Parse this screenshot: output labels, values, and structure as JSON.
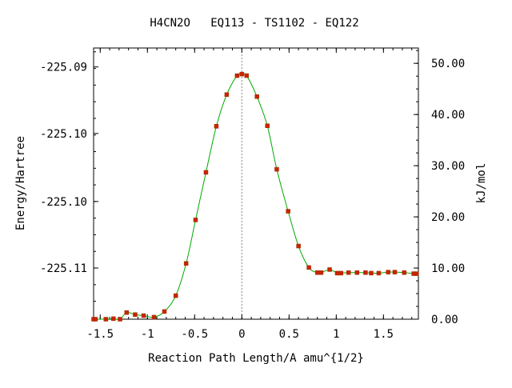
{
  "chart_data": {
    "type": "line",
    "title": "H4CN2O   EQ113 - TS1102 - EQ122",
    "xlabel": "Reaction Path Length/A amu^{1/2}",
    "ylabel_left": "Energy/Hartree",
    "ylabel_right": "kJ/mol",
    "xlim": [
      -1.57,
      1.87
    ],
    "ylim_right": [
      0,
      53
    ],
    "x_ticks": [
      -1.5,
      -1,
      -0.5,
      0,
      0.5,
      1,
      1.5
    ],
    "x_tick_labels": [
      "-1.5",
      "-1",
      "-0.5",
      "0",
      "0.5",
      "1",
      "1.5"
    ],
    "left_ticks": [
      {
        "label": "-225.09",
        "kj": 49.3
      },
      {
        "label": "-225.10",
        "kj": 36.3
      },
      {
        "label": "-225.10",
        "kj": 23.0
      },
      {
        "label": "-225.11",
        "kj": 10.0
      }
    ],
    "right_ticks": [
      0,
      10,
      20,
      30,
      40,
      50
    ],
    "right_tick_labels": [
      "0.00",
      "10.00",
      "20.00",
      "30.00",
      "40.00",
      "50.00"
    ],
    "ts_x": 0.0,
    "series": [
      {
        "x": [
          -1.57,
          -1.55,
          -1.44,
          -1.36,
          -1.29,
          -1.22,
          -1.13,
          -1.04,
          -0.93,
          -0.82,
          -0.7,
          -0.59,
          -0.49,
          -0.38,
          -0.27,
          -0.16,
          -0.05,
          0.0,
          0.05,
          0.16,
          0.27,
          0.37,
          0.49,
          0.6,
          0.71,
          0.8,
          0.84,
          0.93,
          1.01,
          1.05,
          1.13,
          1.22,
          1.31,
          1.37,
          1.45,
          1.55,
          1.62,
          1.72,
          1.82,
          1.85
        ],
        "y": [
          0.0,
          0.0,
          0.0,
          0.1,
          0.0,
          1.3,
          0.9,
          0.7,
          0.4,
          1.5,
          4.6,
          10.9,
          19.4,
          28.7,
          37.7,
          43.9,
          47.6,
          47.9,
          47.6,
          43.5,
          37.8,
          29.3,
          21.1,
          14.3,
          10.1,
          9.1,
          9.1,
          9.7,
          9.0,
          9.0,
          9.1,
          9.1,
          9.1,
          9.0,
          9.0,
          9.2,
          9.2,
          9.1,
          8.9,
          8.9
        ]
      }
    ]
  }
}
